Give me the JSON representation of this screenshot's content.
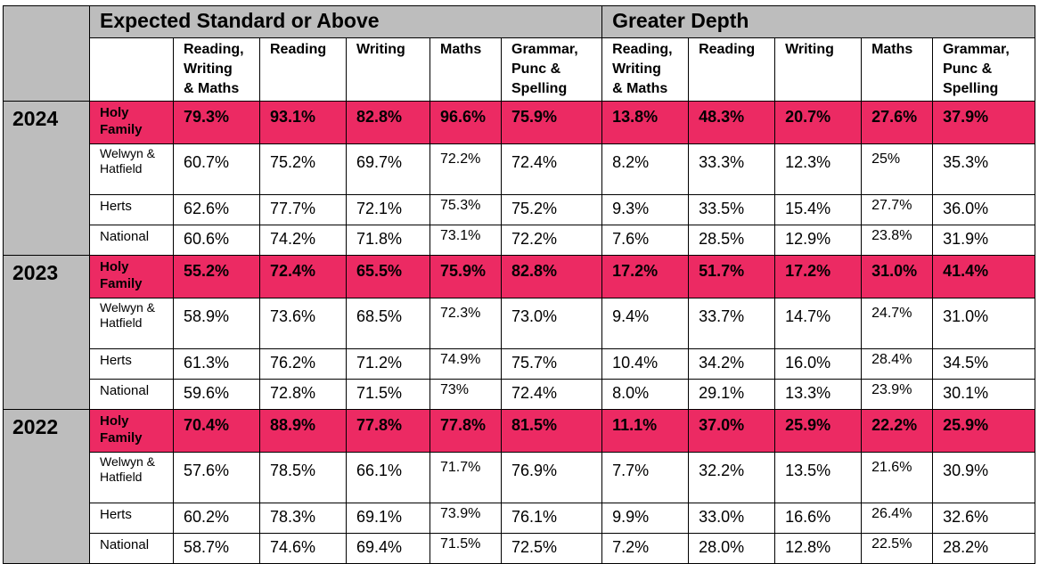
{
  "headers": {
    "expected_group": "Expected Standard or Above",
    "greater_group": "Greater Depth",
    "columns": [
      "Reading,\nWriting\n& Maths",
      "Reading",
      "Writing",
      "Maths",
      "Grammar,\nPunc &\nSpelling"
    ]
  },
  "years": [
    {
      "year": "2024",
      "rows": [
        {
          "region": "Holy Family",
          "values": [
            "79.3%",
            "93.1%",
            "82.8%",
            "96.6%",
            "75.9%",
            "13.8%",
            "48.3%",
            "20.7%",
            "27.6%",
            "37.9%"
          ]
        },
        {
          "region": "Welwyn & Hatfield",
          "values": [
            "60.7%",
            "75.2%",
            "69.7%",
            "72.2%",
            "72.4%",
            "8.2%",
            "33.3%",
            "12.3%",
            "25%",
            "35.3%"
          ]
        },
        {
          "region": "Herts",
          "values": [
            "62.6%",
            "77.7%",
            "72.1%",
            "75.3%",
            "75.2%",
            "9.3%",
            "33.5%",
            "15.4%",
            "27.7%",
            "36.0%"
          ]
        },
        {
          "region": "National",
          "values": [
            "60.6%",
            "74.2%",
            "71.8%",
            "73.1%",
            "72.2%",
            "7.6%",
            "28.5%",
            "12.9%",
            "23.8%",
            "31.9%"
          ]
        }
      ]
    },
    {
      "year": "2023",
      "rows": [
        {
          "region": "Holy Family",
          "values": [
            "55.2%",
            "72.4%",
            "65.5%",
            "75.9%",
            "82.8%",
            "17.2%",
            "51.7%",
            "17.2%",
            "31.0%",
            "41.4%"
          ]
        },
        {
          "region": "Welwyn & Hatfield",
          "values": [
            "58.9%",
            "73.6%",
            "68.5%",
            "72.3%",
            "73.0%",
            "9.4%",
            "33.7%",
            "14.7%",
            "24.7%",
            "31.0%"
          ]
        },
        {
          "region": "Herts",
          "values": [
            "61.3%",
            "76.2%",
            "71.2%",
            "74.9%",
            "75.7%",
            "10.4%",
            "34.2%",
            "16.0%",
            "28.4%",
            "34.5%"
          ]
        },
        {
          "region": "National",
          "values": [
            "59.6%",
            "72.8%",
            "71.5%",
            "73%",
            "72.4%",
            "8.0%",
            "29.1%",
            "13.3%",
            "23.9%",
            "30.1%"
          ]
        }
      ]
    },
    {
      "year": "2022",
      "rows": [
        {
          "region": "Holy Family",
          "values": [
            "70.4%",
            "88.9%",
            "77.8%",
            "77.8%",
            "81.5%",
            "11.1%",
            "37.0%",
            "25.9%",
            "22.2%",
            "25.9%"
          ]
        },
        {
          "region": "Welwyn & Hatfield",
          "values": [
            "57.6%",
            "78.5%",
            "66.1%",
            "71.7%",
            "76.9%",
            "7.7%",
            "32.2%",
            "13.5%",
            "21.6%",
            "30.9%"
          ]
        },
        {
          "region": "Herts",
          "values": [
            "60.2%",
            "78.3%",
            "69.1%",
            "73.9%",
            "76.1%",
            "9.9%",
            "33.0%",
            "16.6%",
            "26.4%",
            "32.6%"
          ]
        },
        {
          "region": "National",
          "values": [
            "58.7%",
            "74.6%",
            "69.4%",
            "71.5%",
            "72.5%",
            "7.2%",
            "28.0%",
            "12.8%",
            "22.5%",
            "28.2%"
          ]
        }
      ]
    }
  ],
  "colors": {
    "highlight": "#ec2a63",
    "header_grey": "#bdbdbd"
  }
}
